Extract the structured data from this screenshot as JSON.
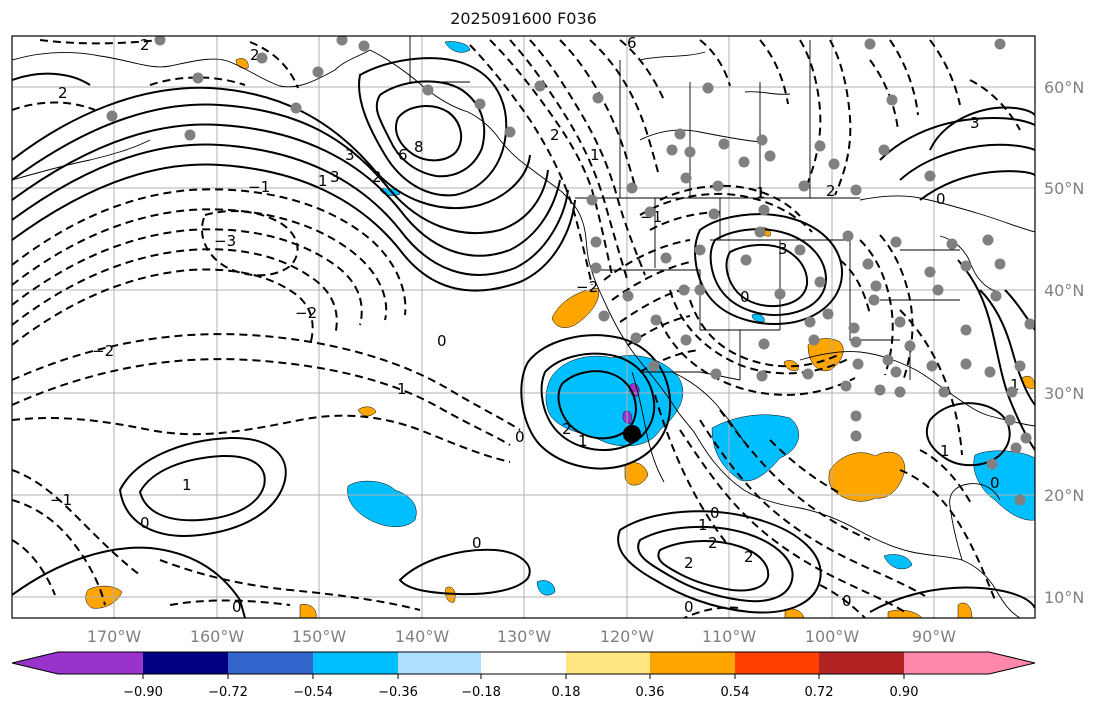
{
  "title": "2025091600 F036",
  "lat_labels": [
    "60°N",
    "50°N",
    "40°N",
    "30°N",
    "20°N",
    "10°N"
  ],
  "lon_labels": [
    "170°W",
    "160°W",
    "150°W",
    "140°W",
    "130°W",
    "120°W",
    "110°W",
    "100°W",
    "90°W"
  ],
  "colorbar": {
    "colors": [
      "#9933cc",
      "#000080",
      "#3366cc",
      "#00bfff",
      "#aee0ff",
      "#ffffff",
      "#ffe680",
      "#ffa500",
      "#ff4000",
      "#b22222",
      "#ff88aa"
    ],
    "tick_labels": [
      "−0.90",
      "−0.72",
      "−0.54",
      "−0.36",
      "−0.18",
      "0.18",
      "0.36",
      "0.54",
      "0.72",
      "0.90"
    ]
  },
  "contour_labels": [
    "2",
    "2",
    "2",
    "6",
    "2",
    "1",
    "3",
    "8",
    "6",
    "3",
    "2",
    "1",
    "−1",
    "−3",
    "−2",
    "−2",
    "0",
    "1",
    "2",
    "1",
    "0",
    "−1",
    "1",
    "0",
    "0",
    "2",
    "2",
    "1",
    "0",
    "2",
    "0",
    "3",
    "0",
    "2",
    "−1",
    "1",
    "−2",
    "1",
    "0",
    "3",
    "0",
    "1",
    "0",
    "0"
  ],
  "marker_label": ""
}
